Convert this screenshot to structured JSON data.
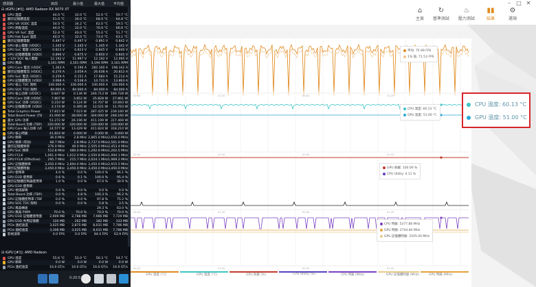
{
  "sensor_app": {
    "header": {
      "col_sensor": "感測器",
      "col_current": "目前",
      "col_min": "最小值",
      "col_max": "最大值",
      "col_avg": "平均值"
    },
    "dgpu_title": "dGPU [#0]: AMD Radeon RX 9070 XT",
    "dgpu_rows": [
      {
        "name": "GPU 溫度",
        "cur": "44.0 °C",
        "min": "32.0 °C",
        "max": "52.0 °C",
        "avg": "50.7 °C",
        "icon": "thermometer-icon"
      },
      {
        "name": "顯示記憶體溫度",
        "cur": "51.0 °C",
        "min": "36.0 °C",
        "max": "68.0 °C",
        "avg": "64.8 °C",
        "icon": "thermometer-icon"
      },
      {
        "name": "GPU VR VDDC 溫度",
        "cur": "54.0 °C",
        "min": "34.2 °C",
        "max": "62.0 °C",
        "avg": "59.5 °C",
        "icon": "thermometer-icon"
      },
      {
        "name": "GPU 熱點溫度",
        "cur": "44.0 °C",
        "min": "32.0 °C",
        "max": "70.0 °C",
        "avg": "66.6 °C",
        "icon": "thermometer-icon"
      },
      {
        "name": "GPU VR SoC 溫度",
        "cur": "52.4 °C",
        "min": "40.0 °C",
        "max": "55.0 °C",
        "avg": "51.7 °C",
        "icon": "thermometer-icon"
      },
      {
        "name": "GPU Hot Spot 溫度",
        "cur": "44.0 °C",
        "min": "32.0 °C",
        "max": "73.0 °C",
        "avg": "63.1 °C",
        "icon": "thermometer-icon"
      },
      {
        "name": "顯示記憶體電壓",
        "cur": "0.497 V",
        "min": "0.497 V",
        "max": "0.891 V",
        "avg": "0.842 V",
        "icon": "lightning-icon"
      },
      {
        "name": "GPU 核心電壓 (VDDC)",
        "cur": "1.245 V",
        "min": "1.245 V",
        "max": "1.345 V",
        "avg": "1.341 V",
        "icon": "lightning-icon"
      },
      {
        "name": "GPU SoC 電壓 (VDDC)",
        "cur": "0.823 V",
        "min": "0.823 V",
        "max": "0.845 V",
        "avg": "0.840 V",
        "icon": "lightning-icon"
      },
      {
        "name": "GPU 記憶體電壓 (VDDC)",
        "cur": "0.896 V",
        "min": "0.875 V",
        "max": "0.850 V",
        "avg": "0.845 V",
        "icon": "lightning-icon"
      },
      {
        "name": "+12V SOC 輸入電壓",
        "cur": "12.192 V",
        "min": "11.997 V",
        "max": "12.192 V",
        "avg": "12.095 V",
        "icon": "lightning-icon"
      },
      {
        "name": "GPU 風扇",
        "cur": "3,161 RPM",
        "min": "3,161 RPM",
        "max": "3,194 RPM",
        "avg": "3,161 RPM",
        "icon": "fan-icon"
      },
      {
        "name": "GPU Core 電流 (VDDC)",
        "cur": "1.263 A",
        "min": "0.196 A",
        "max": "282.160 A",
        "avg": "198.342 A",
        "icon": "lightning-icon"
      },
      {
        "name": "顯示記憶體電流 (VDDC)",
        "cur": "6.270 A",
        "min": "3.059 A",
        "max": "26.638 A",
        "avg": "20.812 A",
        "icon": "lightning-icon"
      },
      {
        "name": "GPU SoC 電流 (VDDC)",
        "cur": "0.259 A",
        "min": "0.151 A",
        "max": "17.684 A",
        "avg": "15.214 A",
        "icon": "lightning-icon"
      },
      {
        "name": "GPU 記憶體電流 (VDDC)",
        "cur": "3.068 A",
        "min": "0.538 A",
        "max": "14.731 A",
        "avg": "13.863 A",
        "icon": "lightning-icon"
      },
      {
        "name": "GPU 核心 TDC 限制",
        "cur": "330.000 A",
        "min": "330.000 A",
        "max": "330.000 A",
        "avg": "330.000 A",
        "icon": "lightning-icon"
      },
      {
        "name": "GPU SOC TDC 限制",
        "cur": "84.000 A",
        "min": "84.000 A",
        "max": "84.000 A",
        "avg": "84.000 A",
        "icon": "lightning-icon"
      },
      {
        "name": "GPU 核心功率 (VDDC)",
        "cur": "0.847 W",
        "min": "0.136 W",
        "max": "246.713 W",
        "avg": "180.728 W",
        "icon": "lightning-icon"
      },
      {
        "name": "GPU Core 功率 (VDDC)",
        "cur": "7.807 W",
        "min": "3.852 W",
        "max": "35.828 W",
        "avg": "27.861 W",
        "icon": "lightning-icon"
      },
      {
        "name": "GPU SoC 功率 (VDDC)",
        "cur": "0.210 W",
        "min": "0.124 W",
        "max": "14.707 W",
        "avg": "10.693 W",
        "icon": "lightning-icon"
      },
      {
        "name": "GPU 記憶體功率 (VDDC)",
        "cur": "2.174 W",
        "min": "0.395 W",
        "max": "12.521 W",
        "avg": "11.763 W",
        "icon": "lightning-icon"
      },
      {
        "name": "Total Graphics Power",
        "cur": "17.815 W",
        "min": "7.023 W",
        "max": "287.425 W",
        "avg": "239.160 W",
        "icon": "lightning-icon"
      },
      {
        "name": "Total Board Power (TBP)",
        "cur": "41.000 W",
        "min": "38.000 W",
        "max": "304.000 W",
        "avg": "248.160 W",
        "icon": "lightning-icon"
      },
      {
        "name": "最大 GPU 功率",
        "cur": "51.272 W",
        "min": "26.196 W",
        "max": "411.199 W",
        "avg": "317.469 W",
        "icon": "lightning-icon"
      },
      {
        "name": "Total Board 功率 (TBP)",
        "cur": "330.000 W",
        "min": "330.000 W",
        "max": "330.000 W",
        "avg": "330.000 W",
        "icon": "lightning-icon"
      },
      {
        "name": "GPU Core 輸入功率 (VDDC)",
        "cur": "24.577 W",
        "min": "13.429 W",
        "max": "411.824 W",
        "avg": "318.210 W",
        "icon": "lightning-icon"
      },
      {
        "name": "GPU 核心時脈",
        "cur": "41.824 W",
        "min": "0.000 W",
        "max": "0.000 W",
        "avg": "0.000 W",
        "icon": "lightning-icon"
      },
      {
        "name": "GPU 頻率",
        "cur": "36.0 MHz",
        "min": "2.8 MHz",
        "max": "2,865.0 MHz",
        "avg": "2,656.0 MHz",
        "icon": "clock-icon"
      },
      {
        "name": "GPU 頻率 (有效)",
        "cur": "68.7 MHz",
        "min": "2.8 MHz",
        "max": "2,737.0 MHz",
        "avg": "2,561.0 MHz",
        "icon": "clock-icon"
      },
      {
        "name": "顯示記憶體頻率",
        "cur": "376.0 MHz",
        "min": "49.0 MHz",
        "max": "2,505.0 MHz",
        "avg": "2,453.4 MHz",
        "icon": "clock-icon"
      },
      {
        "name": "GPU SoC 頻率",
        "cur": "512.8 MHz",
        "min": "480.0 MHz",
        "max": "1,292.6 MHz",
        "avg": "1,262.5 MHz",
        "icon": "clock-icon"
      },
      {
        "name": "GPU FCLK",
        "cur": "1,061.0 MHz",
        "min": "1,012.0 MHz",
        "max": "2,050.8 MHz",
        "avg": "1,994.1 MHz",
        "icon": "clock-icon"
      },
      {
        "name": "GPU FCLK (Effective)",
        "cur": "295.7 MHz",
        "min": "215.7 MHz",
        "max": "2,024.1 MHz",
        "avg": "1,969.2 MHz",
        "icon": "clock-icon"
      },
      {
        "name": "GPU 記憶體頻率",
        "cur": "3,450.0 MHz",
        "min": "2,894.0 MHz",
        "max": "3,450.0 MHz",
        "avg": "2,915.5 MHz",
        "icon": "clock-icon"
      },
      {
        "name": "顯示記憶體時脈",
        "cur": "3,450.0 MHz",
        "min": "3,450.0 MHz",
        "max": "3,450.0 MHz",
        "avg": "3,450.0 MHz",
        "icon": "clock-icon"
      },
      {
        "name": "GPU 使用率",
        "cur": "4.0 %",
        "min": "0.0 %",
        "max": "100.0 %",
        "avg": "96.1 %",
        "icon": "gauge-icon"
      },
      {
        "name": "GPU D3D 使用率",
        "cur": "0.6 %",
        "min": "0.1 %",
        "max": "100.0 %",
        "avg": "95.4 %",
        "icon": "gauge-icon"
      },
      {
        "name": "顯示記憶體控制器使用率",
        "cur": "1.0 %",
        "min": "0.0 %",
        "max": "67.0 %",
        "avg": "30.9 %",
        "icon": "gauge-icon"
      },
      {
        "name": "GPU D3D 使用率",
        "cur": "",
        "min": "",
        "max": "",
        "avg": "",
        "icon": "gauge-icon"
      },
      {
        "name": "GPU 視訊解碼",
        "cur": "0.0 %",
        "min": "0.0 %",
        "max": "0.0 %",
        "avg": "0.0 %",
        "icon": "gauge-icon"
      },
      {
        "name": "Total Board 功率 (TBP)",
        "cur": "0.0 %",
        "min": "4.8 %",
        "max": "100.3 %",
        "avg": "96.2 %",
        "icon": "gauge-icon"
      },
      {
        "name": "GPU 記憶體使用率 (TBP)",
        "cur": "0.0 %",
        "min": "0.0 %",
        "max": "97.8 %",
        "avg": "75.2 %",
        "icon": "gauge-icon"
      },
      {
        "name": "GPU SOC TDC 限制",
        "cur": "0.0 %",
        "min": "0.0 %",
        "max": "5.8 %",
        "avg": "3.5 %",
        "icon": "gauge-icon"
      },
      {
        "name": "GPU 風扇轉速",
        "cur": "",
        "min": "",
        "max": "29.3 %",
        "avg": "63.0 %",
        "icon": "fan-icon"
      },
      {
        "name": "GPU 風扇 PWM",
        "cur": "70.0 %",
        "min": "70.0 %",
        "max": "70.0 %",
        "avg": "70.0 %",
        "icon": "fan-icon"
      },
      {
        "name": "GPU D3D 記憶體使用量",
        "cur": "2,909 MB",
        "min": "2,788 MB",
        "max": "7,986 MB",
        "avg": "7,729 MB",
        "icon": "memory-icon"
      },
      {
        "name": "GPU D3D 共用記憶體",
        "cur": "320 MB",
        "min": "262 MB",
        "max": "382 MB",
        "avg": "333 MB",
        "icon": "memory-icon"
      },
      {
        "name": "PCIe 連結速度",
        "cur": "3,025 MB",
        "min": "2,875 MB",
        "max": "8,031 MB",
        "avg": "7,786 MB",
        "icon": "memory-icon"
      },
      {
        "name": "PCIe 鏈結速度",
        "cur": "3,308 MB",
        "min": "3,025 MB",
        "max": "8,031 MB",
        "avg": "7,786 MB",
        "icon": "memory-icon"
      },
      {
        "name": "影格速率",
        "cur": "0.0 FPS",
        "min": "0.0 FPS",
        "max": "84.0 FPS",
        "avg": "63.9 FPS",
        "icon": "monitor-icon"
      }
    ],
    "igpu_title": "iGPU [#1]: AMD Radeon",
    "igpu_rows": [
      {
        "name": "GPU 溫度",
        "cur": "55.6 °C",
        "min": "52.0 °C",
        "max": "56.3 °C",
        "avg": "54.7 °C",
        "icon": "thermometer-icon"
      },
      {
        "name": "GPU 頻率",
        "cur": "0.0 W",
        "min": "0.0 W",
        "max": "0.0 W",
        "avg": "0.0 W",
        "icon": "lightning-icon"
      },
      {
        "name": "PCIe 連結速度",
        "cur": "16.0 GT/s",
        "min": "16.0 GT/s",
        "max": "16.0 GT/s",
        "avg": "16.0 GT/s",
        "icon": "memory-icon"
      }
    ],
    "timer": "0:20:52"
  },
  "perf_app": {
    "nav": [
      {
        "label": "主頁",
        "icon": "home-icon",
        "active": false
      },
      {
        "label": "基準測試",
        "icon": "refresh-icon",
        "active": false
      },
      {
        "label": "壓力測試",
        "icon": "flame-icon",
        "active": false
      },
      {
        "label": "結果",
        "icon": "bar-chart-icon",
        "active": true
      },
      {
        "label": "選項",
        "icon": "gear-icon",
        "active": false
      }
    ],
    "tooltips": {
      "fps": [
        "平均: 75.99 FPS",
        "1% 低: 71.53 FPS"
      ],
      "temp": [
        "CPU 溫度: 60.13 °C",
        "GPU 溫度: 51.00 °C"
      ],
      "load": [
        "GPU 負載: 100.00 %",
        "CPU Utility: 4.11 %"
      ],
      "clock": [
        "CPU 時脈: 5377.88 MHz",
        "GPU 時脈: 2744.84 MHz",
        "GPU 記憶體時脈: 2505.00 MHz"
      ]
    },
    "callout": {
      "cpu": "CPU 溫度: 60.13 °C",
      "gpu": "GPU 溫度: 51.00 °C"
    },
    "legend": [
      "GPU 溫度 (°C)",
      "GPU 溫度 (°C)",
      "GPU 負載 (%)",
      "CPU Utility (%)",
      "CPU 時脈 (MHz)",
      "GPU 記憶體時脈 (MHz)",
      "GPU 時脈 (MHz)"
    ],
    "time_labels": [
      "00:00",
      "01:20"
    ],
    "colors": {
      "accent": "#e08a1e",
      "teal": "#3ec3c4",
      "red": "#c0392b",
      "purple": "#7a3fc0",
      "highlight": "#d6242a"
    }
  },
  "chart_data": {
    "type": "line",
    "title": "",
    "series": [
      {
        "name": "平均",
        "y_reading": 75.99
      },
      {
        "name": "1% 低",
        "y_reading": 71.53
      },
      {
        "name": "CPU 溫度",
        "y_reading": 60.13
      },
      {
        "name": "GPU 溫度",
        "y_reading": 51.0
      },
      {
        "name": "GPU 負載",
        "y_reading": 100.0
      },
      {
        "name": "CPU Utility",
        "y_reading": 4.11
      },
      {
        "name": "CPU 時脈",
        "y_reading": 5377.88
      },
      {
        "name": "GPU 時脈",
        "y_reading": 2744.84
      },
      {
        "name": "GPU 記憶體時脈",
        "y_reading": 2505.0
      }
    ]
  }
}
